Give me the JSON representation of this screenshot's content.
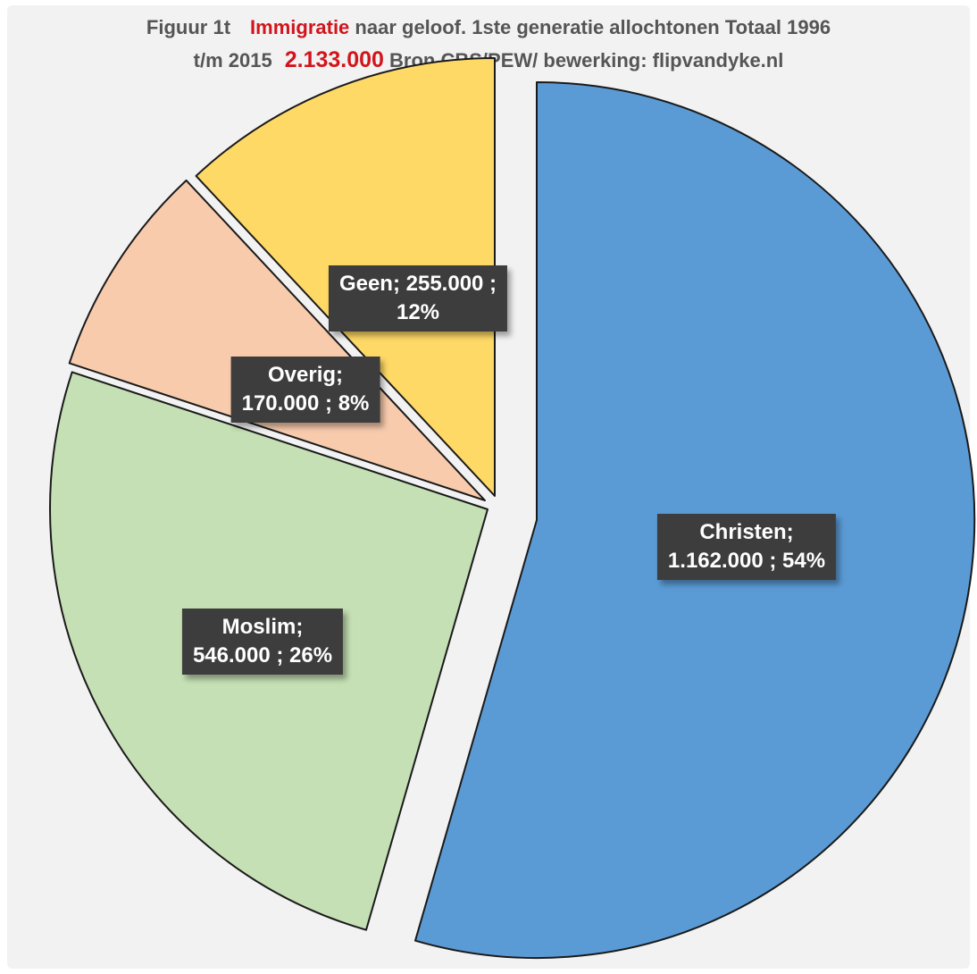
{
  "title": {
    "fig": "Figuur 1t",
    "hl1": "Immigratie",
    "rest1": "naar geloof. 1ste generatie allochtonen  Totaal 1996",
    "pre2": "t/m 2015",
    "hl2": "2.133.000",
    "rest2": "Bron CBS/PEW/ bewerking: flipvandyke.nl"
  },
  "chart_data": {
    "type": "pie",
    "total": 2133000,
    "slices": [
      {
        "category": "Christen",
        "value": 1162000,
        "percent": 54,
        "label_line1": "Christen;",
        "label_line2": "1.162.000 ; 54%",
        "color": "#5b9bd5"
      },
      {
        "category": "Moslim",
        "value": 546000,
        "percent": 26,
        "label_line1": "Moslim;",
        "label_line2": "546.000 ; 26%",
        "color": "#c5e0b4"
      },
      {
        "category": "Overig",
        "value": 170000,
        "percent": 8,
        "label_line1": "Overig;",
        "label_line2": "170.000 ; 8%",
        "color": "#f8cbad"
      },
      {
        "category": "Geen",
        "value": 255000,
        "percent": 12,
        "label_line1": "Geen;  255.000 ;",
        "label_line2": "12%",
        "color": "#ffd966"
      }
    ]
  }
}
